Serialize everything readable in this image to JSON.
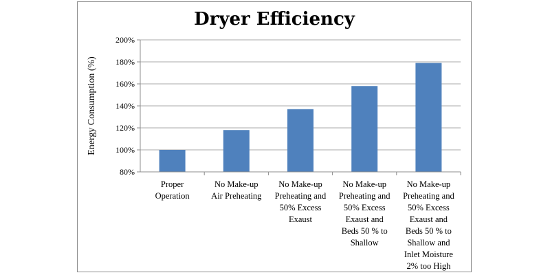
{
  "chart_data": {
    "type": "bar",
    "title": "Dryer Efficiency",
    "xlabel": "",
    "ylabel": "Energy Consumption (%)",
    "ylim": [
      80,
      200
    ],
    "yticks": [
      "80%",
      "100%",
      "120%",
      "140%",
      "160%",
      "180%",
      "200%"
    ],
    "grid": true,
    "legend": "none",
    "colors": {
      "bar": "#4f81bd",
      "axis": "#8c8c8c"
    },
    "categories": [
      [
        "Proper",
        "Operation"
      ],
      [
        "No Make-up",
        "Air Preheating"
      ],
      [
        "No Make-up",
        "Preheating and",
        "50% Excess",
        "Exaust"
      ],
      [
        "No Make-up",
        "Preheating and",
        "50% Excess",
        "Exaust  and",
        "Beds 50 % to",
        "Shallow"
      ],
      [
        "No Make-up",
        "Preheating and",
        "50% Excess",
        "Exaust  and",
        "Beds 50 % to",
        "Shallow and",
        "Inlet Moisture",
        "2% too High"
      ]
    ],
    "values": [
      100,
      118,
      137,
      158,
      179
    ]
  }
}
